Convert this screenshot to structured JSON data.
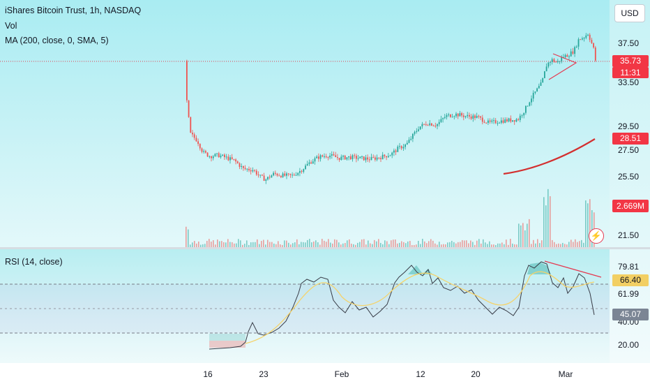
{
  "legend": {
    "symbol": "iShares Bitcoin Trust, 1h, NASDAQ",
    "vol": "Vol",
    "ma": "MA (200, close, 0, SMA, 5)",
    "rsi": "RSI (14, close)"
  },
  "toolbar": {
    "currency": "USD"
  },
  "price_axis": {
    "ticks": [
      "37.50",
      "33.50",
      "29.50",
      "27.50",
      "25.50",
      "21.50"
    ],
    "last_price": "35.73",
    "countdown": "11:31",
    "ma_value": "28.51",
    "vol_value": "2.669M"
  },
  "rsi_axis": {
    "ticks": [
      "79.81",
      "61.99",
      "40.00",
      "20.00"
    ],
    "rsi_ma": "66.40",
    "rsi_value": "45.07"
  },
  "time_axis": [
    "16",
    "23",
    "Feb",
    "12",
    "20",
    "Mar"
  ],
  "icons": {
    "alert": "lightning-icon"
  },
  "colors": {
    "up": "#26a69a",
    "down": "#ef5350",
    "ma": "#d32f2f",
    "rsi_line": "#363a45",
    "rsi_ma": "#f5d36b",
    "badge_red": "#f23645",
    "badge_yellow": "#f2cf63",
    "badge_gray": "#7b8594"
  }
}
